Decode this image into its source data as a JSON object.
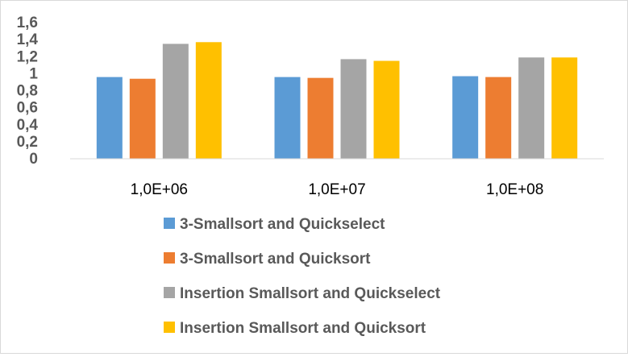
{
  "chart_data": {
    "type": "bar",
    "title": "",
    "xlabel": "",
    "ylabel": "",
    "categories": [
      "1,0E+06",
      "1,0E+07",
      "1,0E+08"
    ],
    "series": [
      {
        "name": "3-Smallsort and Quickselect",
        "values": [
          0.96,
          0.96,
          0.97
        ],
        "color": "#5B9BD5"
      },
      {
        "name": "3-Smallsort and Quicksort",
        "values": [
          0.94,
          0.95,
          0.96
        ],
        "color": "#ED7D31"
      },
      {
        "name": "Insertion Smallsort and Quickselect",
        "values": [
          1.35,
          1.17,
          1.19
        ],
        "color": "#A5A5A5"
      },
      {
        "name": "Insertion Smallsort and Quicksort",
        "values": [
          1.37,
          1.15,
          1.19
        ],
        "color": "#FFC000"
      }
    ],
    "ylim": [
      0,
      1.6
    ],
    "yticks": [
      "0",
      "0,2",
      "0,4",
      "0,6",
      "0,8",
      "1",
      "1,2",
      "1,4",
      "1,6"
    ],
    "grid": false,
    "legend_position": "bottom"
  }
}
